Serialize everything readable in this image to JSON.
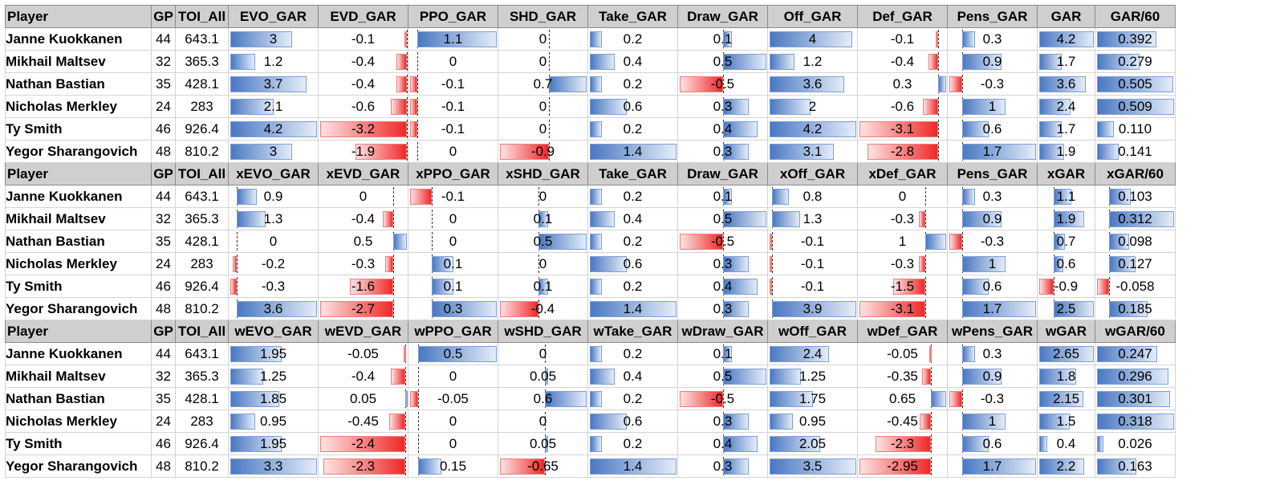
{
  "colors": {
    "header_bg": "#d0cece",
    "positive_bar": "#4a78c2",
    "negative_bar": "#f02828"
  },
  "sections": [
    {
      "headers": [
        "Player",
        "GP",
        "TOI_All",
        "EVO_GAR",
        "EVD_GAR",
        "PPO_GAR",
        "SHD_GAR",
        "Take_GAR",
        "Draw_GAR",
        "Off_GAR",
        "Def_GAR",
        "Pens_GAR",
        "GAR",
        "GAR/60"
      ],
      "rows": [
        {
          "player": "Janne Kuokkanen",
          "gp": "44",
          "toi": "643.1",
          "values": [
            "3",
            "-0.1",
            "1.1",
            "0",
            "0.2",
            "0.1",
            "4",
            "-0.1",
            "0.3",
            "4.2",
            "0.392"
          ]
        },
        {
          "player": "Mikhail Maltsev",
          "gp": "32",
          "toi": "365.3",
          "values": [
            "1.2",
            "-0.4",
            "0",
            "0",
            "0.4",
            "0.5",
            "1.2",
            "-0.4",
            "0.9",
            "1.7",
            "0.279"
          ]
        },
        {
          "player": "Nathan Bastian",
          "gp": "35",
          "toi": "428.1",
          "values": [
            "3.7",
            "-0.4",
            "-0.1",
            "0.7",
            "0.2",
            "-0.5",
            "3.6",
            "0.3",
            "-0.3",
            "3.6",
            "0.505"
          ]
        },
        {
          "player": "Nicholas Merkley",
          "gp": "24",
          "toi": "283",
          "values": [
            "2.1",
            "-0.6",
            "-0.1",
            "0",
            "0.6",
            "0.3",
            "2",
            "-0.6",
            "1",
            "2.4",
            "0.509"
          ]
        },
        {
          "player": "Ty Smith",
          "gp": "46",
          "toi": "926.4",
          "values": [
            "4.2",
            "-3.2",
            "-0.1",
            "0",
            "0.2",
            "0.4",
            "4.2",
            "-3.1",
            "0.6",
            "1.7",
            "0.110"
          ]
        },
        {
          "player": "Yegor Sharangovich",
          "gp": "48",
          "toi": "810.2",
          "values": [
            "3",
            "-1.9",
            "0",
            "-0.9",
            "1.4",
            "0.3",
            "3.1",
            "-2.8",
            "1.7",
            "1.9",
            "0.141"
          ]
        }
      ]
    },
    {
      "headers": [
        "Player",
        "GP",
        "TOI_All",
        "xEVO_GAR",
        "xEVD_GAR",
        "xPPO_GAR",
        "xSHD_GAR",
        "Take_GAR",
        "Draw_GAR",
        "xOff_GAR",
        "xDef_GAR",
        "Pens_GAR",
        "xGAR",
        "xGAR/60"
      ],
      "rows": [
        {
          "player": "Janne Kuokkanen",
          "gp": "44",
          "toi": "643.1",
          "values": [
            "0.9",
            "0",
            "-0.1",
            "0",
            "0.2",
            "0.1",
            "0.8",
            "0",
            "0.3",
            "1.1",
            "0.103"
          ]
        },
        {
          "player": "Mikhail Maltsev",
          "gp": "32",
          "toi": "365.3",
          "values": [
            "1.3",
            "-0.4",
            "0",
            "0.1",
            "0.4",
            "0.5",
            "1.3",
            "-0.3",
            "0.9",
            "1.9",
            "0.312"
          ]
        },
        {
          "player": "Nathan Bastian",
          "gp": "35",
          "toi": "428.1",
          "values": [
            "0",
            "0.5",
            "0",
            "0.5",
            "0.2",
            "-0.5",
            "-0.1",
            "1",
            "-0.3",
            "0.7",
            "0.098"
          ]
        },
        {
          "player": "Nicholas Merkley",
          "gp": "24",
          "toi": "283",
          "values": [
            "-0.2",
            "-0.3",
            "0.1",
            "0",
            "0.6",
            "0.3",
            "-0.1",
            "-0.3",
            "1",
            "0.6",
            "0.127"
          ]
        },
        {
          "player": "Ty Smith",
          "gp": "46",
          "toi": "926.4",
          "values": [
            "-0.3",
            "-1.6",
            "0.1",
            "0.1",
            "0.2",
            "0.4",
            "-0.1",
            "-1.5",
            "0.6",
            "-0.9",
            "-0.058"
          ]
        },
        {
          "player": "Yegor Sharangovich",
          "gp": "48",
          "toi": "810.2",
          "values": [
            "3.6",
            "-2.7",
            "0.3",
            "-0.4",
            "1.4",
            "0.3",
            "3.9",
            "-3.1",
            "1.7",
            "2.5",
            "0.185"
          ]
        }
      ]
    },
    {
      "headers": [
        "Player",
        "GP",
        "TOI_All",
        "wEVO_GAR",
        "wEVD_GAR",
        "wPPO_GAR",
        "wSHD_GAR",
        "wTake_GAR",
        "wDraw_GAR",
        "wOff_GAR",
        "wDef_GAR",
        "wPens_GAR",
        "wGAR",
        "wGAR/60"
      ],
      "rows": [
        {
          "player": "Janne Kuokkanen",
          "gp": "44",
          "toi": "643.1",
          "values": [
            "1.95",
            "-0.05",
            "0.5",
            "0",
            "0.2",
            "0.1",
            "2.4",
            "-0.05",
            "0.3",
            "2.65",
            "0.247"
          ]
        },
        {
          "player": "Mikhail Maltsev",
          "gp": "32",
          "toi": "365.3",
          "values": [
            "1.25",
            "-0.4",
            "0",
            "0.05",
            "0.4",
            "0.5",
            "1.25",
            "-0.35",
            "0.9",
            "1.8",
            "0.296"
          ]
        },
        {
          "player": "Nathan Bastian",
          "gp": "35",
          "toi": "428.1",
          "values": [
            "1.85",
            "0.05",
            "-0.05",
            "0.6",
            "0.2",
            "-0.5",
            "1.75",
            "0.65",
            "-0.3",
            "2.15",
            "0.301"
          ]
        },
        {
          "player": "Nicholas Merkley",
          "gp": "24",
          "toi": "283",
          "values": [
            "0.95",
            "-0.45",
            "0",
            "0",
            "0.6",
            "0.3",
            "0.95",
            "-0.45",
            "1",
            "1.5",
            "0.318"
          ]
        },
        {
          "player": "Ty Smith",
          "gp": "46",
          "toi": "926.4",
          "values": [
            "1.95",
            "-2.4",
            "0",
            "0.05",
            "0.2",
            "0.4",
            "2.05",
            "-2.3",
            "0.6",
            "0.4",
            "0.026"
          ]
        },
        {
          "player": "Yegor Sharangovich",
          "gp": "48",
          "toi": "810.2",
          "values": [
            "3.3",
            "-2.3",
            "0.15",
            "-0.65",
            "1.4",
            "0.3",
            "3.5",
            "-2.95",
            "1.7",
            "2.2",
            "0.163"
          ]
        }
      ]
    }
  ]
}
